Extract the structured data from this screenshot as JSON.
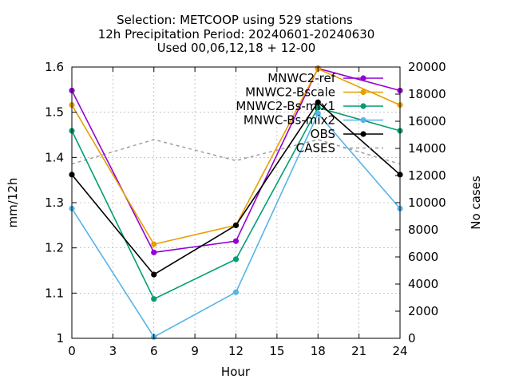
{
  "chart_data": {
    "type": "line",
    "title_lines": [
      "Selection: METCOOP using   529 stations",
      "12h Precipitation   Period: 20240601-20240630",
      "Used 00,06,12,18 + 12-00"
    ],
    "xlabel": "Hour",
    "ylabel": "mm/12h",
    "y2label": "No cases",
    "x": [
      0,
      6,
      12,
      18,
      24
    ],
    "xlim": [
      0,
      24
    ],
    "xticks": [
      0,
      3,
      6,
      9,
      12,
      15,
      18,
      21,
      24
    ],
    "ylim": [
      1.0,
      1.6
    ],
    "yticks": [
      1,
      1.1,
      1.2,
      1.3,
      1.4,
      1.5,
      1.6
    ],
    "y2lim": [
      0,
      20000
    ],
    "y2ticks": [
      0,
      2000,
      4000,
      6000,
      8000,
      10000,
      12000,
      14000,
      16000,
      18000,
      20000
    ],
    "grid": true,
    "legend_position": "top-right",
    "series": [
      {
        "name": "MNWC2-ref",
        "color": "#9400d3",
        "values": [
          1.548,
          1.19,
          1.215,
          1.597,
          1.548
        ]
      },
      {
        "name": "MNWC2-Bscale",
        "color": "#e69f00",
        "values": [
          1.516,
          1.208,
          1.25,
          1.596,
          1.516
        ]
      },
      {
        "name": "MNWC2-Bs-mix1",
        "color": "#009e73",
        "values": [
          1.459,
          1.087,
          1.175,
          1.51,
          1.459
        ]
      },
      {
        "name": "MNWC-Bs-mix2",
        "color": "#56b4e9",
        "values": [
          1.287,
          1.003,
          1.102,
          1.497,
          1.287
        ]
      },
      {
        "name": "OBS",
        "color": "#000000",
        "values": [
          1.362,
          1.141,
          1.25,
          1.522,
          1.362
        ]
      }
    ],
    "cases": {
      "name": "CASES",
      "color": "#a0a0a0",
      "values": [
        12850,
        14650,
        13100,
        14650,
        12850
      ]
    }
  }
}
